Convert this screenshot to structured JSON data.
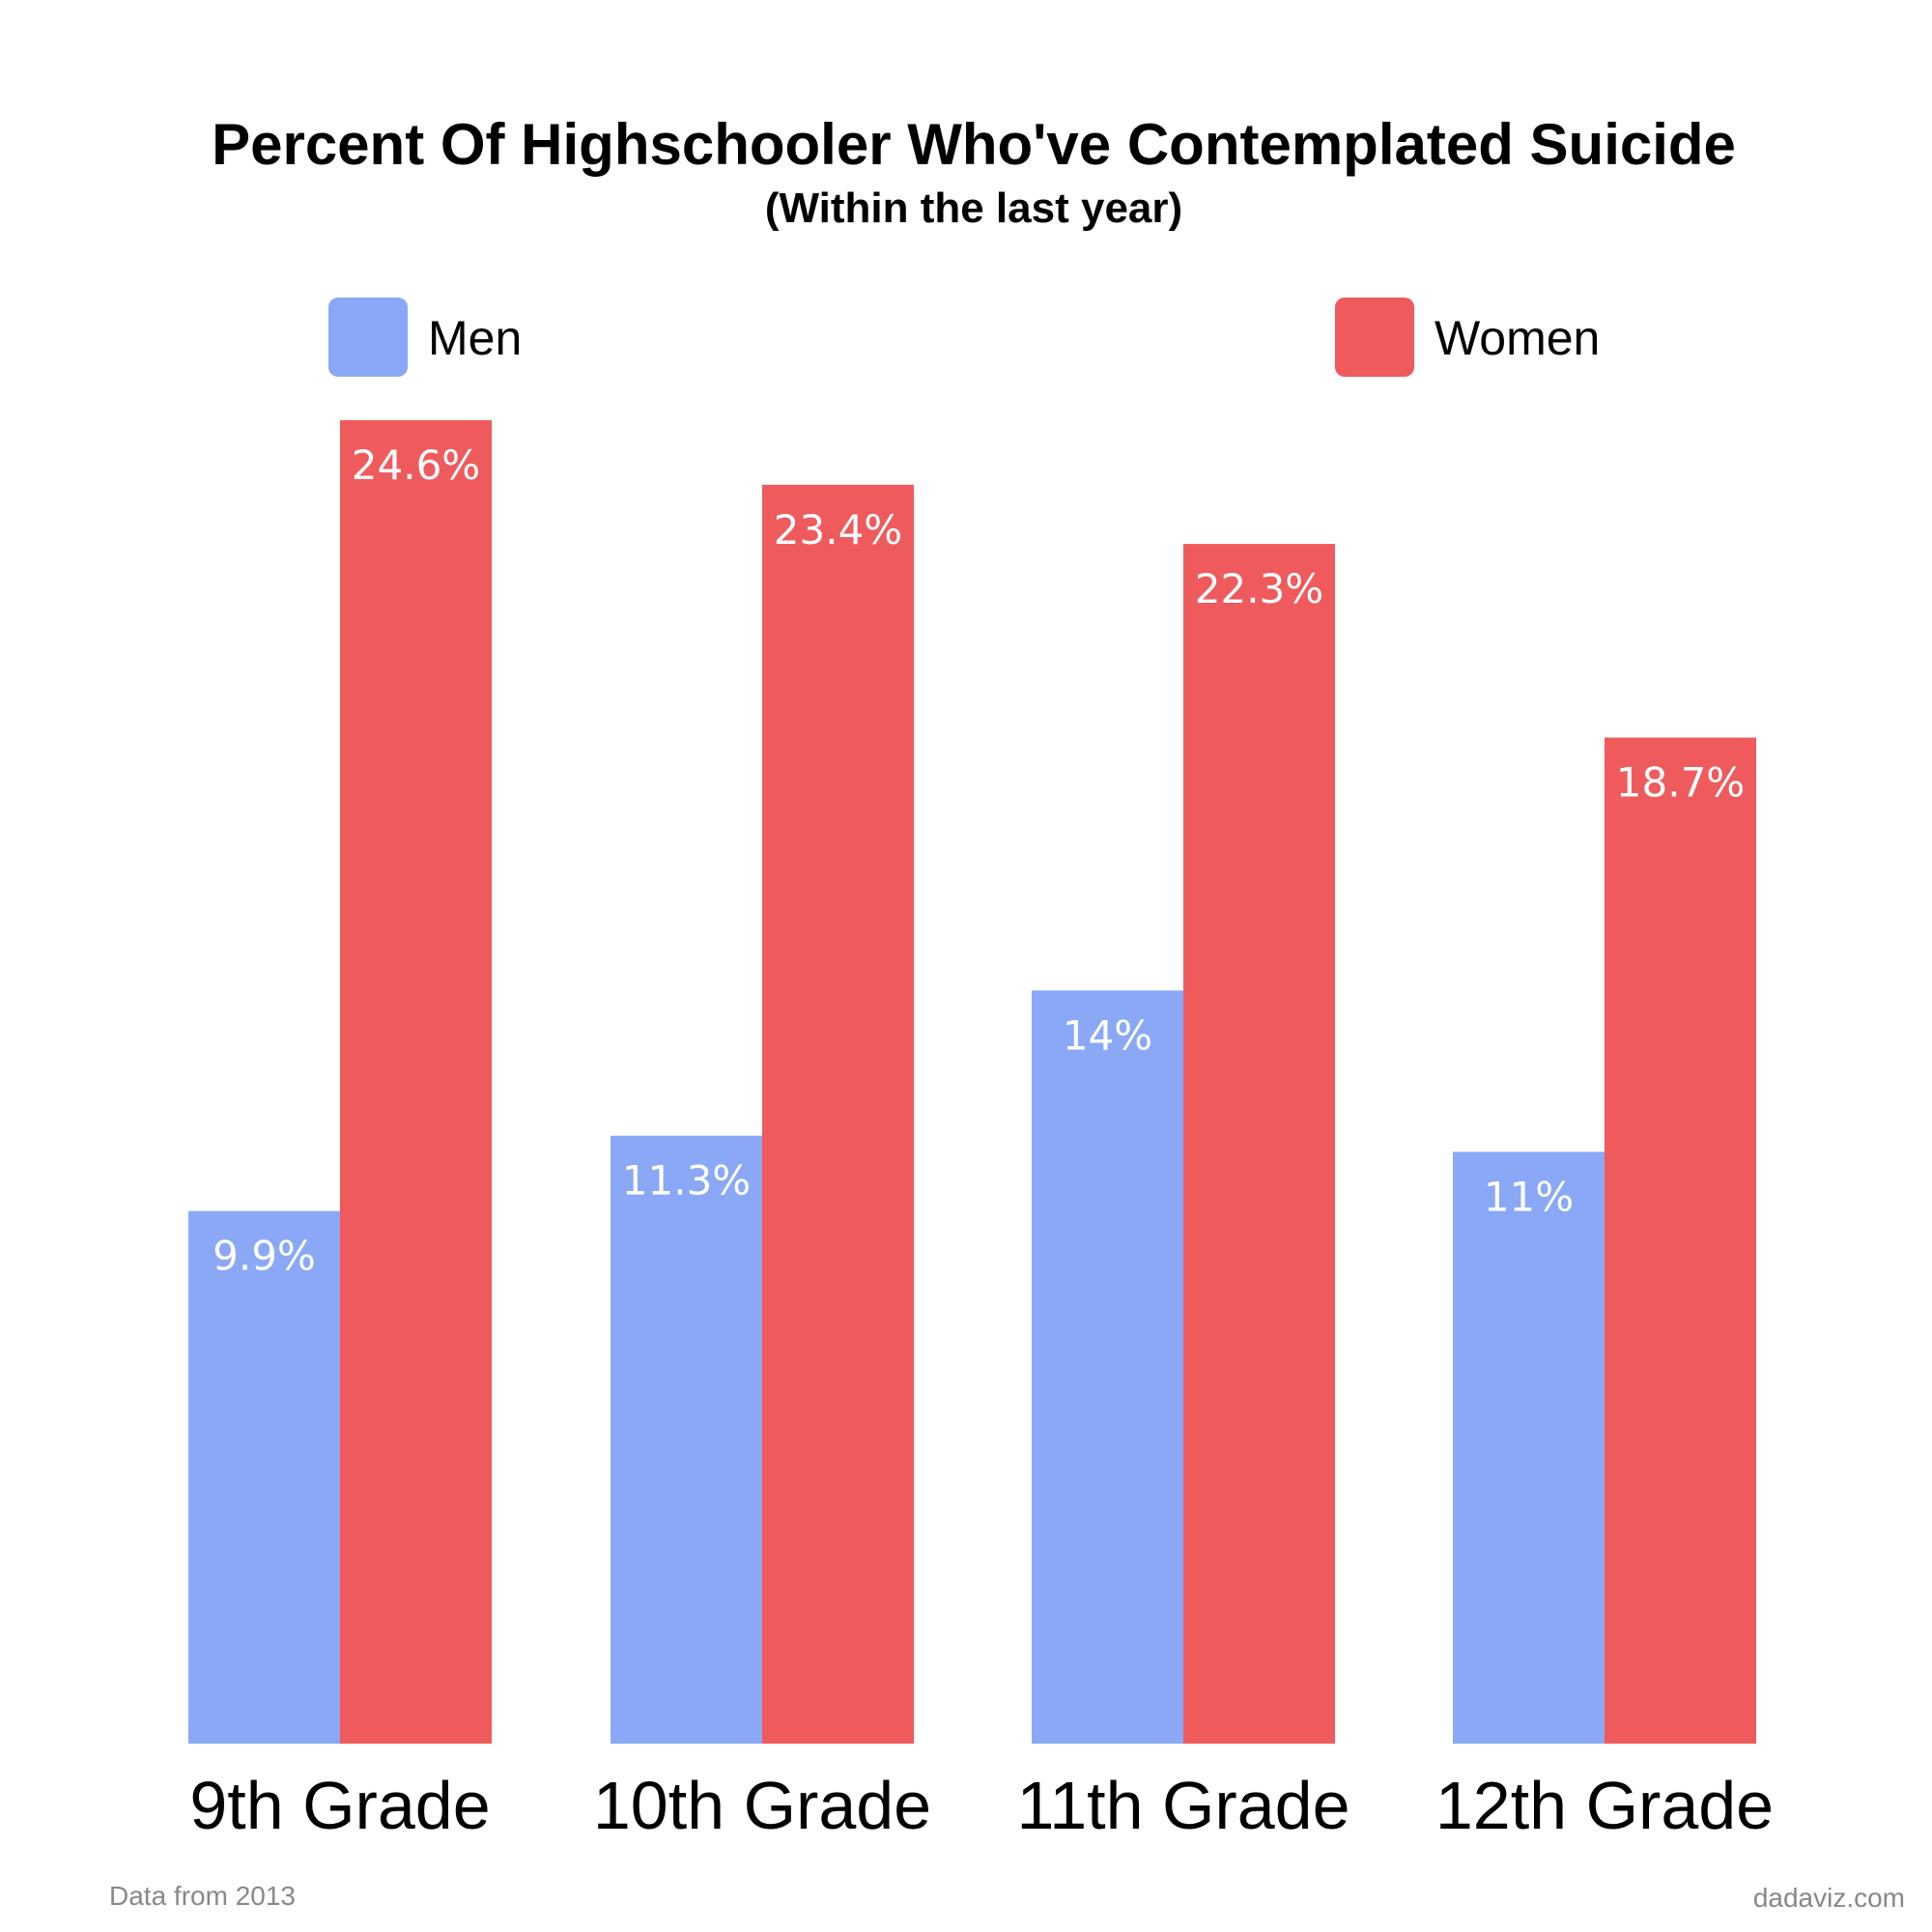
{
  "chart_data": {
    "type": "bar",
    "title": "Percent Of Highschooler Who've Contemplated Suicide",
    "subtitle": "(Within the last year)",
    "categories": [
      "9th Grade",
      "10th Grade",
      "11th Grade",
      "12th Grade"
    ],
    "series": [
      {
        "name": "Men",
        "color": "#8aa8f5",
        "values": [
          9.9,
          11.3,
          14,
          11
        ],
        "labels": [
          "9.9%",
          "11.3%",
          "14%",
          "11%"
        ]
      },
      {
        "name": "Women",
        "color": "#ef5a5c",
        "values": [
          24.6,
          23.4,
          22.3,
          18.7
        ],
        "labels": [
          "24.6%",
          "23.4%",
          "22.3%",
          "18.7%"
        ]
      }
    ],
    "ylim": [
      0,
      24.6
    ],
    "grid": false,
    "legend_position": "top",
    "xlabel": "",
    "ylabel": ""
  },
  "footer": {
    "source": "Data from 2013",
    "credit": "dadaviz.com"
  }
}
